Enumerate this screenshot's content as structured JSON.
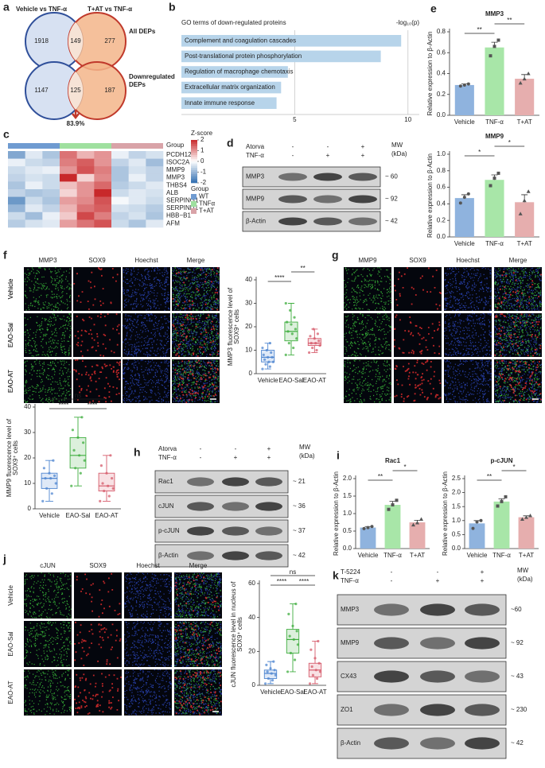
{
  "venn": {
    "letter": "a",
    "set_labels": [
      "Vehicle vs TNF-α",
      "T+AT vs TNF-α"
    ],
    "diagrams": [
      {
        "label": [
          "All DEPs"
        ],
        "left": 1918,
        "both": 149,
        "right": 277
      },
      {
        "label": [
          "Downregulated",
          "DEPs"
        ],
        "left": 1147,
        "both": 125,
        "right": 187
      }
    ],
    "overlap_share": "83.9%"
  },
  "blots": [
    {
      "letter": "d",
      "treatments": [
        {
          "name": "Atorva",
          "signs": [
            "-",
            "-",
            "+"
          ]
        },
        {
          "name": "TNF-α",
          "signs": [
            "-",
            "+",
            "+"
          ]
        }
      ],
      "mw": [
        "MW",
        "(kDa)"
      ],
      "rows": [
        {
          "name": "MMP3",
          "mw": "~ 60"
        },
        {
          "name": "MMP9",
          "mw": "~ 92"
        },
        {
          "name": "β-Actin",
          "mw": "~ 42"
        }
      ]
    },
    {
      "letter": "h",
      "treatments": [
        {
          "name": "Atorva",
          "signs": [
            "-",
            "-",
            "+"
          ]
        },
        {
          "name": "TNF-α",
          "signs": [
            "-",
            "+",
            "+"
          ]
        }
      ],
      "mw": [
        "MW",
        "(kDa)"
      ],
      "rows": [
        {
          "name": "Rac1",
          "mw": "~ 21"
        },
        {
          "name": "cJUN",
          "mw": "~ 36"
        },
        {
          "name": "p-cJUN",
          "mw": "~ 37"
        },
        {
          "name": "β-Actin",
          "mw": "~ 42"
        }
      ]
    },
    {
      "letter": "k",
      "treatments": [
        {
          "name": "T-5224",
          "signs": [
            "-",
            "-",
            "+"
          ]
        },
        {
          "name": "TNF-α",
          "signs": [
            "-",
            "+",
            "+"
          ]
        }
      ],
      "mw": [
        "MW",
        "(kDa)"
      ],
      "rows": [
        {
          "name": "MMP3",
          "mw": "~60"
        },
        {
          "name": "MMP9",
          "mw": "~ 92"
        },
        {
          "name": "CX43",
          "mw": "~ 43"
        },
        {
          "name": "ZO1",
          "mw": "~ 230"
        },
        {
          "name": "β-Actin",
          "mw": "~ 42"
        }
      ]
    }
  ],
  "micrographs": [
    {
      "letter": "f",
      "channels": [
        "MMP3",
        "SOX9",
        "Hoechst",
        "Merge"
      ],
      "channel_colors": [
        "#3cb043",
        "#e02020",
        "#2b3fa8",
        "#111111"
      ],
      "rows": [
        "Vehicle",
        "EAO-Sal",
        "EAO-AT"
      ]
    },
    {
      "letter": "g",
      "channels": [
        "MMP9",
        "SOX9",
        "Hoechst",
        "Merge"
      ],
      "channel_colors": [
        "#3cb043",
        "#e02020",
        "#2b3fa8",
        "#111111"
      ],
      "rows": [
        "Vehicle",
        "EAO-Sal",
        "EAO-AT"
      ]
    },
    {
      "letter": "j",
      "channels": [
        "cJUN",
        "SOX9",
        "Hoechst",
        "Merge"
      ],
      "channel_colors": [
        "#3cb043",
        "#e02020",
        "#2b3fa8",
        "#111111"
      ],
      "rows": [
        "Vehicle",
        "EAO-Sal",
        "EAO-AT"
      ]
    }
  ],
  "chart_data": [
    {
      "type": "barh",
      "letter": "b",
      "title": "GO terms of down-regulated proteins",
      "xlabel": "-log₁₀(p)",
      "categories": [
        "Complement and coagulation cascades",
        "Post-translational protein phosphorylation",
        "Regulation of macrophage chemotaxis",
        "Extracellular matrix organization",
        "Innate immune response"
      ],
      "values": [
        9.7,
        8.8,
        4.7,
        4.4,
        4.2
      ],
      "color": "#b7d4ea",
      "xlim": [
        0,
        10.5
      ],
      "xticks": [
        5,
        10
      ],
      "grid": true
    },
    {
      "type": "heatmap",
      "letter": "c",
      "rows": [
        "PCDH12",
        "ISOC2A",
        "MMP9",
        "MMP3",
        "THBS4",
        "ALB",
        "SERPING1",
        "SERPIND1",
        "HBB−B1",
        "AFM"
      ],
      "values": [
        [
          -1.2,
          -0.3,
          -0.8,
          1.3,
          0.7,
          1.0,
          -0.2,
          -0.6,
          -0.4
        ],
        [
          -0.2,
          -0.5,
          -0.6,
          1.2,
          1.5,
          1.0,
          -0.6,
          -0.3,
          -0.9
        ],
        [
          -0.5,
          -0.3,
          -0.2,
          1.0,
          1.6,
          1.2,
          -0.8,
          -0.4,
          -0.6
        ],
        [
          -0.6,
          -0.4,
          -0.5,
          2.0,
          0.4,
          1.1,
          -0.8,
          -0.2,
          -0.6
        ],
        [
          -0.8,
          -0.2,
          -0.5,
          0.6,
          1.0,
          1.4,
          -0.7,
          -0.5,
          -0.3
        ],
        [
          -0.6,
          -0.8,
          -0.7,
          0.4,
          1.0,
          2.0,
          -0.5,
          -0.3,
          -0.4
        ],
        [
          -1.4,
          -0.5,
          -0.8,
          0.9,
          1.1,
          1.6,
          -0.1,
          -0.3,
          -0.5
        ],
        [
          -1.0,
          -0.3,
          -0.6,
          0.7,
          1.3,
          1.5,
          -0.4,
          -0.5,
          -0.7
        ],
        [
          -0.5,
          -0.9,
          -0.2,
          0.5,
          1.7,
          1.2,
          -0.6,
          -0.4,
          -0.8
        ],
        [
          -0.7,
          -0.4,
          -0.3,
          0.9,
          1.3,
          1.6,
          -0.5,
          -0.8,
          -0.3
        ]
      ],
      "groups": [
        {
          "name": "WT",
          "color": "#6f9bd1"
        },
        {
          "name": "TNFα",
          "color": "#9fe09f"
        },
        {
          "name": "T+AT",
          "color": "#d9a3a8"
        }
      ],
      "group_label": "Group",
      "legend_title": "Group",
      "colorbar_title": "Z-score",
      "zlim": [
        -2,
        2
      ],
      "colorbar_ticks": [
        2,
        1,
        0,
        -1,
        -2
      ],
      "cmap": [
        "#2f6db0",
        "#ffffff",
        "#c8282a"
      ]
    },
    {
      "type": "bar",
      "letter": "e",
      "title": "MMP3",
      "ylabel": "Relative expression to β-Actin",
      "categories": [
        "Vehicle",
        "TNF-α",
        "T+AT"
      ],
      "values": [
        0.29,
        0.65,
        0.35
      ],
      "errors": [
        0.01,
        0.05,
        0.04
      ],
      "points": [
        [
          0.28,
          0.29,
          0.3
        ],
        [
          0.57,
          0.66,
          0.72
        ],
        [
          0.31,
          0.35,
          0.4
        ]
      ],
      "colors": [
        "#8fb3de",
        "#a8e6a8",
        "#e6aeae"
      ],
      "ylim": [
        0,
        0.8
      ],
      "yticks": [
        {
          "value": 0,
          "label": "0.0"
        },
        0.2,
        0.4,
        0.6,
        0.8
      ],
      "significance": [
        "**",
        "**"
      ]
    },
    {
      "type": "bar",
      "title": "MMP9",
      "ylabel": "Relative expression to β-Actin",
      "categories": [
        "Vehicle",
        "TNF-α",
        "T+AT"
      ],
      "values": [
        0.47,
        0.69,
        0.42
      ],
      "errors": [
        0.04,
        0.06,
        0.09
      ],
      "points": [
        [
          0.41,
          0.48,
          0.52
        ],
        [
          0.62,
          0.71,
          0.77
        ],
        [
          0.28,
          0.44,
          0.55
        ]
      ],
      "colors": [
        "#8fb3de",
        "#a8e6a8",
        "#e6aeae"
      ],
      "ylim": [
        0,
        1.0
      ],
      "yticks": [
        {
          "value": 0,
          "label": "0.0"
        },
        0.2,
        0.4,
        0.6,
        0.8,
        {
          "value": 1,
          "label": "1.0"
        }
      ],
      "significance": [
        "*",
        "*"
      ]
    },
    {
      "type": "bar",
      "letter": "i",
      "title": "Rac1",
      "ylabel": "Relative expression to β-Actin",
      "categories": [
        "Vehicle",
        "TNF-α",
        "T+AT"
      ],
      "values": [
        0.6,
        1.25,
        0.75
      ],
      "errors": [
        0.03,
        0.1,
        0.06
      ],
      "points": [
        [
          0.57,
          0.6,
          0.63
        ],
        [
          1.12,
          1.25,
          1.38
        ],
        [
          0.68,
          0.74,
          0.84
        ]
      ],
      "colors": [
        "#8fb3de",
        "#a8e6a8",
        "#e6aeae"
      ],
      "ylim": [
        0,
        2.0
      ],
      "yticks": [
        {
          "value": 0,
          "label": "0.0"
        },
        0.5,
        {
          "value": 1,
          "label": "1.0"
        },
        1.5,
        {
          "value": 2,
          "label": "2.0"
        }
      ],
      "significance": [
        "**",
        "*"
      ]
    },
    {
      "type": "bar",
      "title": "p-cJUN",
      "ylabel": "Relative expression to β-Actin",
      "categories": [
        "Vehicle",
        "TNF-α",
        "T+AT"
      ],
      "values": [
        0.9,
        1.68,
        1.12
      ],
      "errors": [
        0.1,
        0.1,
        0.05
      ],
      "points": [
        [
          0.72,
          0.95,
          1.0
        ],
        [
          1.52,
          1.68,
          1.85
        ],
        [
          1.05,
          1.12,
          1.18
        ]
      ],
      "colors": [
        "#8fb3de",
        "#a8e6a8",
        "#e6aeae"
      ],
      "ylim": [
        0,
        2.5
      ],
      "yticks": [
        {
          "value": 0,
          "label": "0.0"
        },
        0.5,
        {
          "value": 1,
          "label": "1.0"
        },
        1.5,
        {
          "value": 2,
          "label": "2.0"
        },
        2.5
      ],
      "significance": [
        "**",
        "*"
      ]
    },
    {
      "type": "box",
      "ylabel": [
        "MMP3 fluorescence level of",
        "SOX9⁺ cells"
      ],
      "categories": [
        "Vehicle",
        "EAO-Sal",
        "EAO-AT"
      ],
      "boxes": [
        {
          "min": 2,
          "q1": 5,
          "median": 7,
          "q3": 10,
          "max": 13
        },
        {
          "min": 8,
          "q1": 14,
          "median": 18,
          "q3": 22,
          "max": 30
        },
        {
          "min": 9,
          "q1": 12,
          "median": 13,
          "q3": 15,
          "max": 19
        }
      ],
      "points": [
        [
          2,
          3,
          4,
          5,
          5,
          6,
          7,
          7,
          8,
          9,
          10,
          11,
          13
        ],
        [
          8,
          11,
          13,
          15,
          17,
          18,
          19,
          21,
          22,
          24,
          27,
          30
        ],
        [
          9,
          10,
          11,
          12,
          13,
          13,
          14,
          15,
          16,
          17,
          19
        ]
      ],
      "colors": [
        "#4f86d0",
        "#3fae3f",
        "#d65b6b"
      ],
      "ylim": [
        0,
        40
      ],
      "yticks": [
        0,
        10,
        20,
        30,
        40
      ],
      "significance": [
        "****",
        "**"
      ]
    },
    {
      "type": "box",
      "ylabel": [
        "MMP9 fluorescence level of",
        "SOX9⁺ cells"
      ],
      "categories": [
        "Vehicle",
        "EAO-Sal",
        "EAO-AT"
      ],
      "boxes": [
        {
          "min": 3,
          "q1": 8,
          "median": 12,
          "q3": 14,
          "max": 19
        },
        {
          "min": 9,
          "q1": 16,
          "median": 21,
          "q3": 28,
          "max": 36
        },
        {
          "min": 3,
          "q1": 7,
          "median": 9,
          "q3": 14,
          "max": 21
        }
      ],
      "points": [
        [
          3,
          6,
          8,
          10,
          12,
          12,
          13,
          14,
          16,
          19
        ],
        [
          9,
          14,
          16,
          19,
          21,
          23,
          26,
          28,
          31,
          36
        ],
        [
          3,
          5,
          7,
          8,
          9,
          10,
          12,
          14,
          17,
          21
        ]
      ],
      "colors": [
        "#4f86d0",
        "#3fae3f",
        "#d65b6b"
      ],
      "ylim": [
        0,
        40
      ],
      "yticks": [
        0,
        10,
        20,
        30,
        40
      ],
      "significance": [
        "ns",
        "****",
        "****"
      ]
    },
    {
      "type": "box",
      "ylabel": [
        "cJUN fluorescence level in nucleus of",
        "SOX9⁺ cells"
      ],
      "categories": [
        "Vehicle",
        "EAO-Sal",
        "EAO-AT"
      ],
      "boxes": [
        {
          "min": 1,
          "q1": 4,
          "median": 7,
          "q3": 9,
          "max": 14
        },
        {
          "min": 8,
          "q1": 19,
          "median": 27,
          "q3": 33,
          "max": 48
        },
        {
          "min": 1,
          "q1": 5,
          "median": 9,
          "q3": 13,
          "max": 26
        }
      ],
      "points": [
        [
          1,
          3,
          4,
          6,
          7,
          8,
          9,
          10,
          12,
          14
        ],
        [
          8,
          15,
          19,
          24,
          27,
          29,
          32,
          35,
          42,
          48
        ],
        [
          1,
          4,
          6,
          8,
          9,
          11,
          13,
          16,
          21,
          26
        ]
      ],
      "colors": [
        "#4f86d0",
        "#3fae3f",
        "#d65b6b"
      ],
      "ylim": [
        0,
        60
      ],
      "yticks": [
        0,
        20,
        40,
        60
      ],
      "significance": [
        "ns",
        "****",
        "****"
      ]
    }
  ]
}
